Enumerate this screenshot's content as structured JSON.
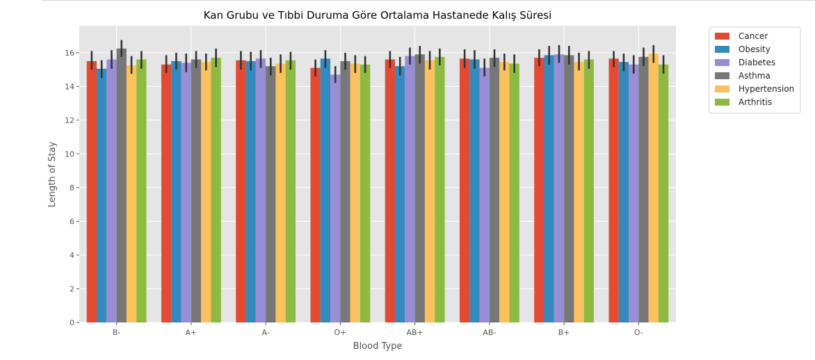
{
  "chart_data": {
    "type": "bar",
    "title": "Kan Grubu ve Tıbbi Duruma Göre Ortalama Hastanede Kalış Süresi",
    "xlabel": "Blood Type",
    "ylabel": "Length of Stay",
    "ylim": [
      0,
      17.6
    ],
    "yticks": [
      0,
      2,
      4,
      6,
      8,
      10,
      12,
      14,
      16
    ],
    "grid": true,
    "legend_position": "outside-top-right",
    "categories": [
      "B-",
      "A+",
      "A-",
      "O+",
      "AB+",
      "AB-",
      "B+",
      "O-"
    ],
    "series": [
      {
        "name": "Cancer",
        "color": "#E24A33",
        "values": [
          15.5,
          15.3,
          15.55,
          15.1,
          15.6,
          15.65,
          15.7,
          15.65
        ],
        "err_low": [
          15.0,
          14.8,
          15.0,
          14.6,
          15.1,
          15.1,
          15.2,
          15.15
        ],
        "err_high": [
          16.1,
          15.85,
          16.1,
          15.6,
          16.1,
          16.2,
          16.2,
          16.1
        ]
      },
      {
        "name": "Obesity",
        "color": "#348ABD",
        "values": [
          15.05,
          15.5,
          15.5,
          15.65,
          15.2,
          15.6,
          15.85,
          15.45
        ],
        "err_low": [
          14.5,
          15.0,
          14.95,
          15.1,
          14.65,
          15.05,
          15.3,
          14.9
        ],
        "err_high": [
          15.55,
          16.0,
          16.05,
          16.15,
          15.75,
          16.15,
          16.4,
          15.95
        ]
      },
      {
        "name": "Diabetes",
        "color": "#988ED5",
        "values": [
          15.6,
          15.4,
          15.65,
          14.7,
          15.8,
          15.1,
          15.9,
          15.3
        ],
        "err_low": [
          15.05,
          14.85,
          15.1,
          14.2,
          15.3,
          14.6,
          15.4,
          14.75
        ],
        "err_high": [
          16.15,
          15.95,
          16.15,
          15.2,
          16.3,
          15.65,
          16.45,
          15.85
        ]
      },
      {
        "name": "Asthma",
        "color": "#777777",
        "values": [
          16.25,
          15.6,
          15.2,
          15.5,
          15.9,
          15.7,
          15.85,
          15.75
        ],
        "err_low": [
          15.75,
          15.1,
          14.65,
          15.0,
          15.35,
          15.15,
          15.3,
          15.2
        ],
        "err_high": [
          16.75,
          16.1,
          15.7,
          16.0,
          16.4,
          16.2,
          16.4,
          16.3
        ]
      },
      {
        "name": "Hypertension",
        "color": "#FBC15E",
        "values": [
          15.25,
          15.45,
          15.35,
          15.35,
          15.55,
          15.45,
          15.45,
          15.95
        ],
        "err_low": [
          14.75,
          14.95,
          14.8,
          14.8,
          15.0,
          14.95,
          14.95,
          15.4
        ],
        "err_high": [
          15.8,
          15.95,
          15.9,
          15.85,
          16.1,
          15.95,
          16.0,
          16.45
        ]
      },
      {
        "name": "Arthritis",
        "color": "#8EBA42",
        "values": [
          15.6,
          15.7,
          15.55,
          15.3,
          15.75,
          15.35,
          15.6,
          15.3
        ],
        "err_low": [
          15.05,
          15.15,
          15.0,
          14.8,
          15.25,
          14.8,
          15.05,
          14.75
        ],
        "err_high": [
          16.1,
          16.25,
          16.05,
          15.8,
          16.25,
          15.9,
          16.1,
          15.85
        ]
      }
    ]
  }
}
